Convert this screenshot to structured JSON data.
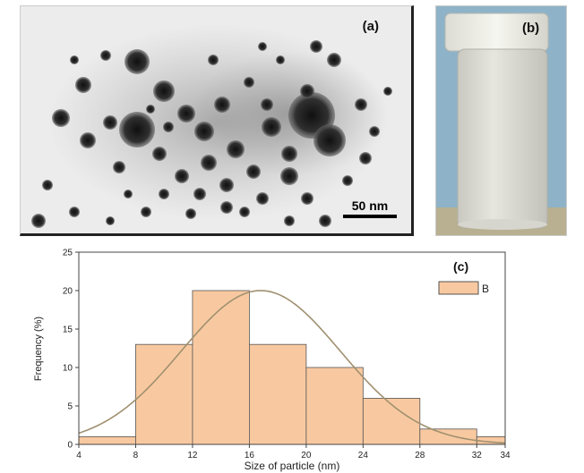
{
  "panel_a": {
    "label": "(a)",
    "scale_bar": "50 nm"
  },
  "panel_b": {
    "label": "(b)"
  },
  "panel_c": {
    "label": "(c)",
    "legend_entry": "B"
  },
  "colors": {
    "bar_fill": "#f8c9a0",
    "bar_stroke": "#555555",
    "curve": "#a09070"
  },
  "chart_data": {
    "type": "bar",
    "histogram": true,
    "bin_edges": [
      4,
      8,
      12,
      16,
      20,
      24,
      28,
      32,
      34
    ],
    "values": [
      1,
      13,
      20,
      13,
      10,
      6,
      2,
      1
    ],
    "fit_curve": {
      "type": "normal",
      "mean": 16.8,
      "peak": 20
    },
    "xlabel": "Size of particle (nm)",
    "ylabel": "Frequency (%)",
    "xlim": [
      4,
      34
    ],
    "ylim": [
      0,
      25
    ],
    "xticks": [
      "4",
      "8",
      "12",
      "16",
      "20",
      "24",
      "28",
      "32",
      "34"
    ],
    "yticks": [
      "0",
      "5",
      "10",
      "15",
      "20",
      "25"
    ],
    "legend": {
      "placement": "top-right",
      "entries": [
        "B"
      ]
    },
    "grid": false
  }
}
